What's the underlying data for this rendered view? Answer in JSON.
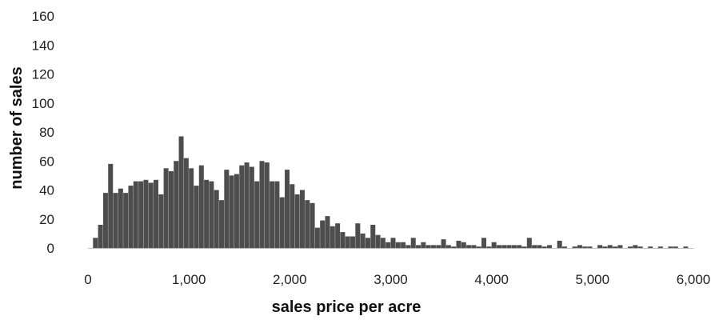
{
  "chart_data": {
    "type": "bar",
    "title": "",
    "xlabel": "sales price per acre",
    "ylabel": "number of sales",
    "xlim": [
      0,
      6000
    ],
    "ylim": [
      0,
      160
    ],
    "x_ticks": [
      "0",
      "1,000",
      "2,000",
      "3,000",
      "4,000",
      "5,000",
      "6,000"
    ],
    "y_ticks": [
      "0",
      "20",
      "40",
      "60",
      "80",
      "100",
      "120",
      "140",
      "160"
    ],
    "bin_width": 50,
    "bin_starts": [
      50,
      100,
      150,
      200,
      250,
      300,
      350,
      400,
      450,
      500,
      550,
      600,
      650,
      700,
      750,
      800,
      850,
      900,
      950,
      1000,
      1050,
      1100,
      1150,
      1200,
      1250,
      1300,
      1350,
      1400,
      1450,
      1500,
      1550,
      1600,
      1650,
      1700,
      1750,
      1800,
      1850,
      1900,
      1950,
      2000,
      2050,
      2100,
      2150,
      2200,
      2250,
      2300,
      2350,
      2400,
      2450,
      2500,
      2550,
      2600,
      2650,
      2700,
      2750,
      2800,
      2850,
      2900,
      2950,
      3000,
      3050,
      3100,
      3150,
      3200,
      3250,
      3300,
      3350,
      3400,
      3450,
      3500,
      3550,
      3600,
      3650,
      3700,
      3750,
      3800,
      3850,
      3900,
      3950,
      4000,
      4050,
      4100,
      4150,
      4200,
      4250,
      4300,
      4350,
      4400,
      4450,
      4500,
      4550,
      4600,
      4650,
      4700,
      4750,
      4800,
      4850,
      4900,
      4950,
      5000,
      5050,
      5100,
      5150,
      5200,
      5250,
      5300,
      5350,
      5400,
      5450,
      5500,
      5550,
      5600,
      5650,
      5700,
      5750,
      5800,
      5850,
      5900
    ],
    "values": [
      7,
      16,
      38,
      58,
      38,
      41,
      38,
      43,
      46,
      46,
      47,
      45,
      47,
      37,
      55,
      53,
      60,
      77,
      62,
      55,
      43,
      57,
      47,
      46,
      40,
      33,
      54,
      50,
      51,
      57,
      59,
      56,
      46,
      60,
      59,
      46,
      46,
      35,
      54,
      44,
      37,
      40,
      33,
      31,
      14,
      19,
      22,
      15,
      17,
      11,
      8,
      8,
      17,
      10,
      7,
      16,
      9,
      7,
      4,
      7,
      4,
      4,
      2,
      7,
      2,
      4,
      2,
      2,
      2,
      6,
      2,
      1,
      5,
      4,
      2,
      2,
      1,
      7,
      1,
      4,
      2,
      2,
      2,
      2,
      2,
      1,
      7,
      2,
      2,
      1,
      2,
      0,
      5,
      1,
      0,
      1,
      2,
      1,
      1,
      0,
      2,
      1,
      2,
      1,
      2,
      0,
      1,
      2,
      1,
      0,
      1,
      0,
      1,
      0,
      1,
      1,
      0,
      1
    ]
  }
}
